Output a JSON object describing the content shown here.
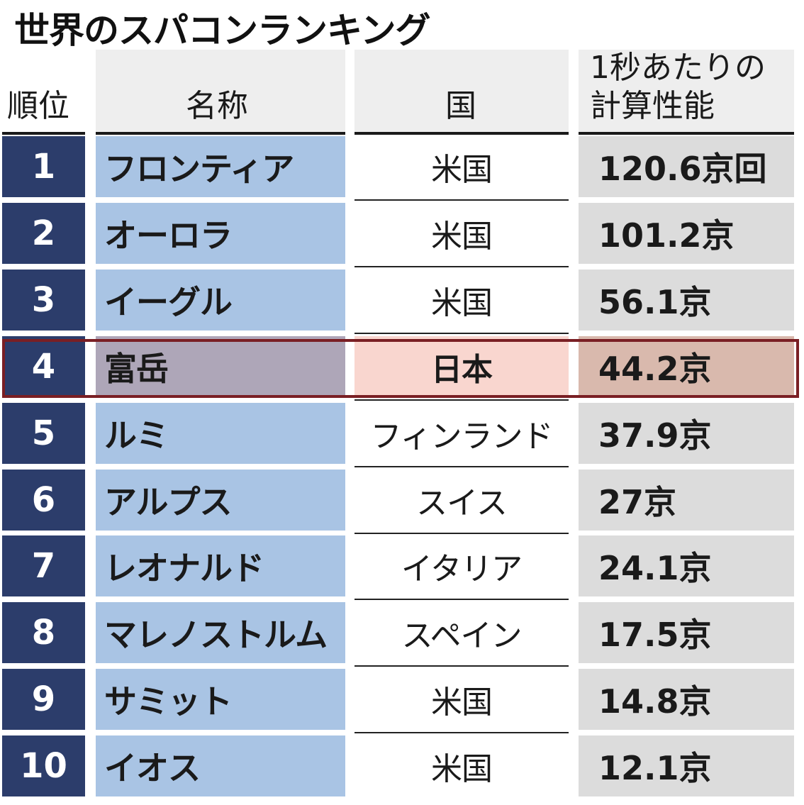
{
  "title": "世界のスパコンランキング",
  "headers": {
    "rank": "順位",
    "name": "名称",
    "country": "国",
    "performance_line1": "1秒あたりの",
    "performance_line2": "計算性能"
  },
  "highlight_rank": 4,
  "colors": {
    "rank_bg": "#2c3d6b",
    "name_bg": "#a9c4e4",
    "perf_bg": "#dcdcdc",
    "highlight_frame": "#7a1f24",
    "highlight_name_bg": "#aea6b8",
    "highlight_country_bg": "#f9d6cf",
    "highlight_perf_bg": "#d9b9ad"
  },
  "chart_data": {
    "type": "table",
    "title": "世界のスパコンランキング",
    "columns": [
      "順位",
      "名称",
      "国",
      "1秒あたりの計算性能"
    ],
    "rows": [
      {
        "rank": "1",
        "name": "フロンティア",
        "country": "米国",
        "performance": "120.6京回"
      },
      {
        "rank": "2",
        "name": "オーロラ",
        "country": "米国",
        "performance": "101.2京"
      },
      {
        "rank": "3",
        "name": "イーグル",
        "country": "米国",
        "performance": "56.1京"
      },
      {
        "rank": "4",
        "name": "富岳",
        "country": "日本",
        "performance": "44.2京"
      },
      {
        "rank": "5",
        "name": "ルミ",
        "country": "フィンランド",
        "performance": "37.9京"
      },
      {
        "rank": "6",
        "name": "アルプス",
        "country": "スイス",
        "performance": "27京"
      },
      {
        "rank": "7",
        "name": "レオナルド",
        "country": "イタリア",
        "performance": "24.1京"
      },
      {
        "rank": "8",
        "name": "マレノストルム",
        "country": "スペイン",
        "performance": "17.5京"
      },
      {
        "rank": "9",
        "name": "サミット",
        "country": "米国",
        "performance": "14.8京"
      },
      {
        "rank": "10",
        "name": "イオス",
        "country": "米国",
        "performance": "12.1京"
      }
    ]
  }
}
